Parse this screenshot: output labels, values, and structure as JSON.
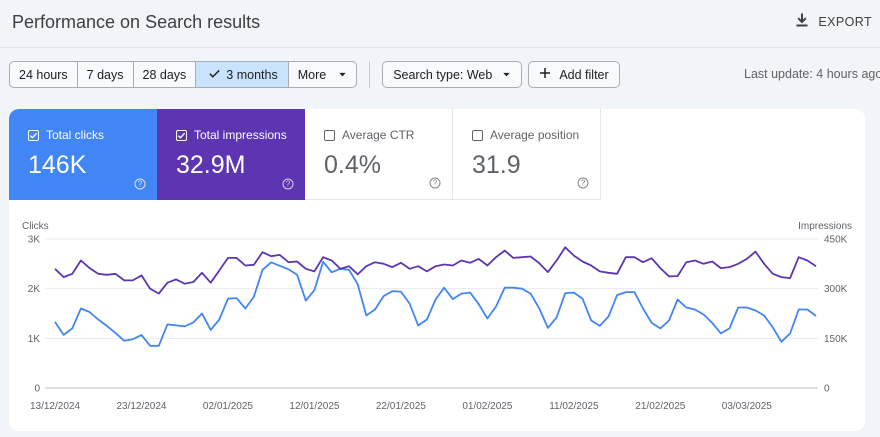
{
  "header": {
    "title": "Performance on Search results",
    "export_label": "EXPORT"
  },
  "toolbar": {
    "ranges": [
      {
        "label": "24 hours",
        "selected": false
      },
      {
        "label": "7 days",
        "selected": false
      },
      {
        "label": "28 days",
        "selected": false
      },
      {
        "label": "3 months",
        "selected": true
      },
      {
        "label": "More",
        "selected": false
      }
    ],
    "search_type_label": "Search type: Web",
    "add_filter_label": "Add filter",
    "last_update": "Last update: 4 hours ago"
  },
  "metrics": [
    {
      "label": "Total clicks",
      "value": "146K",
      "checked": true,
      "color": "#4285f4"
    },
    {
      "label": "Total impressions",
      "value": "32.9M",
      "checked": true,
      "color": "#5e35b1"
    },
    {
      "label": "Average CTR",
      "value": "0.4%",
      "checked": false
    },
    {
      "label": "Average position",
      "value": "31.9",
      "checked": false
    }
  ],
  "icons": {
    "export": "download-icon",
    "selected_range": "check-icon",
    "more": "caret-down-icon",
    "add_filter": "plus-icon",
    "metric_help": "help-circle-icon"
  },
  "chart_data": {
    "type": "line",
    "left_axis_label": "Clicks",
    "right_axis_label": "Impressions",
    "left_ticks": [
      "0",
      "1K",
      "2K",
      "3K"
    ],
    "right_ticks": [
      "0",
      "150K",
      "300K",
      "450K"
    ],
    "left_ylim": [
      0,
      3000
    ],
    "right_ylim": [
      0,
      450000
    ],
    "grid": true,
    "x_tick_labels": [
      "13/12/2024",
      "23/12/2024",
      "02/01/2025",
      "12/01/2025",
      "22/01/2025",
      "01/02/2025",
      "11/02/2025",
      "21/02/2025",
      "03/03/2025"
    ],
    "x_tick_every": 10,
    "series": [
      {
        "name": "Clicks",
        "axis": "left",
        "color": "#4285f4",
        "values": [
          1330,
          1070,
          1200,
          1600,
          1530,
          1380,
          1250,
          1110,
          950,
          980,
          1070,
          850,
          850,
          1280,
          1260,
          1240,
          1320,
          1500,
          1170,
          1380,
          1800,
          1810,
          1600,
          1840,
          2380,
          2530,
          2460,
          2390,
          2280,
          1760,
          1970,
          2540,
          2330,
          2400,
          2380,
          2090,
          1460,
          1580,
          1850,
          1950,
          1940,
          1700,
          1260,
          1380,
          1780,
          2020,
          1790,
          1900,
          1920,
          1690,
          1400,
          1640,
          2020,
          2020,
          2000,
          1900,
          1600,
          1210,
          1420,
          1910,
          1920,
          1800,
          1360,
          1250,
          1440,
          1870,
          1930,
          1930,
          1600,
          1310,
          1200,
          1360,
          1780,
          1620,
          1580,
          1480,
          1310,
          1100,
          1200,
          1620,
          1620,
          1560,
          1460,
          1220,
          930,
          1100,
          1580,
          1580,
          1450
        ]
      },
      {
        "name": "Impressions",
        "axis": "right",
        "color": "#5e35b1",
        "values": [
          360000,
          335000,
          345000,
          385000,
          362000,
          345000,
          342000,
          345000,
          325000,
          325000,
          340000,
          300000,
          285000,
          318000,
          328000,
          315000,
          320000,
          348000,
          318000,
          355000,
          393000,
          393000,
          370000,
          372000,
          410000,
          398000,
          402000,
          380000,
          382000,
          360000,
          352000,
          395000,
          385000,
          360000,
          368000,
          343000,
          368000,
          380000,
          375000,
          365000,
          378000,
          360000,
          368000,
          352000,
          368000,
          373000,
          370000,
          385000,
          378000,
          390000,
          370000,
          395000,
          415000,
          393000,
          395000,
          397000,
          377000,
          350000,
          385000,
          425000,
          400000,
          382000,
          370000,
          352000,
          348000,
          345000,
          395000,
          395000,
          380000,
          392000,
          362000,
          337000,
          338000,
          380000,
          385000,
          375000,
          382000,
          362000,
          365000,
          375000,
          390000,
          412000,
          375000,
          345000,
          335000,
          332000,
          395000,
          385000,
          368000
        ]
      }
    ]
  }
}
